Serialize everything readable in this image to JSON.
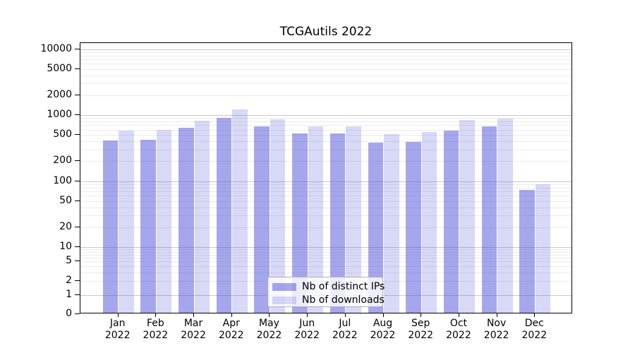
{
  "chart_data": {
    "type": "bar",
    "title": "TCGAutils 2022",
    "categories": [
      "Jan",
      "Feb",
      "Mar",
      "Apr",
      "May",
      "Jun",
      "Jul",
      "Aug",
      "Sep",
      "Oct",
      "Nov",
      "Dec"
    ],
    "year_label": "2022",
    "series": [
      {
        "name": "Nb of distinct IPs",
        "color": "rgba(85,85,221,0.52)",
        "values": [
          410,
          420,
          635,
          905,
          670,
          530,
          525,
          385,
          390,
          580,
          670,
          73
        ]
      },
      {
        "name": "Nb of downloads",
        "color": "rgba(85,85,221,0.23)",
        "values": [
          580,
          600,
          815,
          1220,
          870,
          680,
          680,
          510,
          560,
          840,
          890,
          90
        ]
      }
    ],
    "yscale": "symlog",
    "ylim": [
      0,
      12500
    ],
    "yticks": [
      0,
      1,
      2,
      5,
      10,
      20,
      50,
      100,
      200,
      500,
      1000,
      2000,
      5000,
      10000
    ],
    "grid": "on",
    "legend_position": "lower center",
    "colors": {
      "major_gridline": "#c9c9c9",
      "minor_gridline": "#ebebeb",
      "axis": "#000000"
    }
  }
}
